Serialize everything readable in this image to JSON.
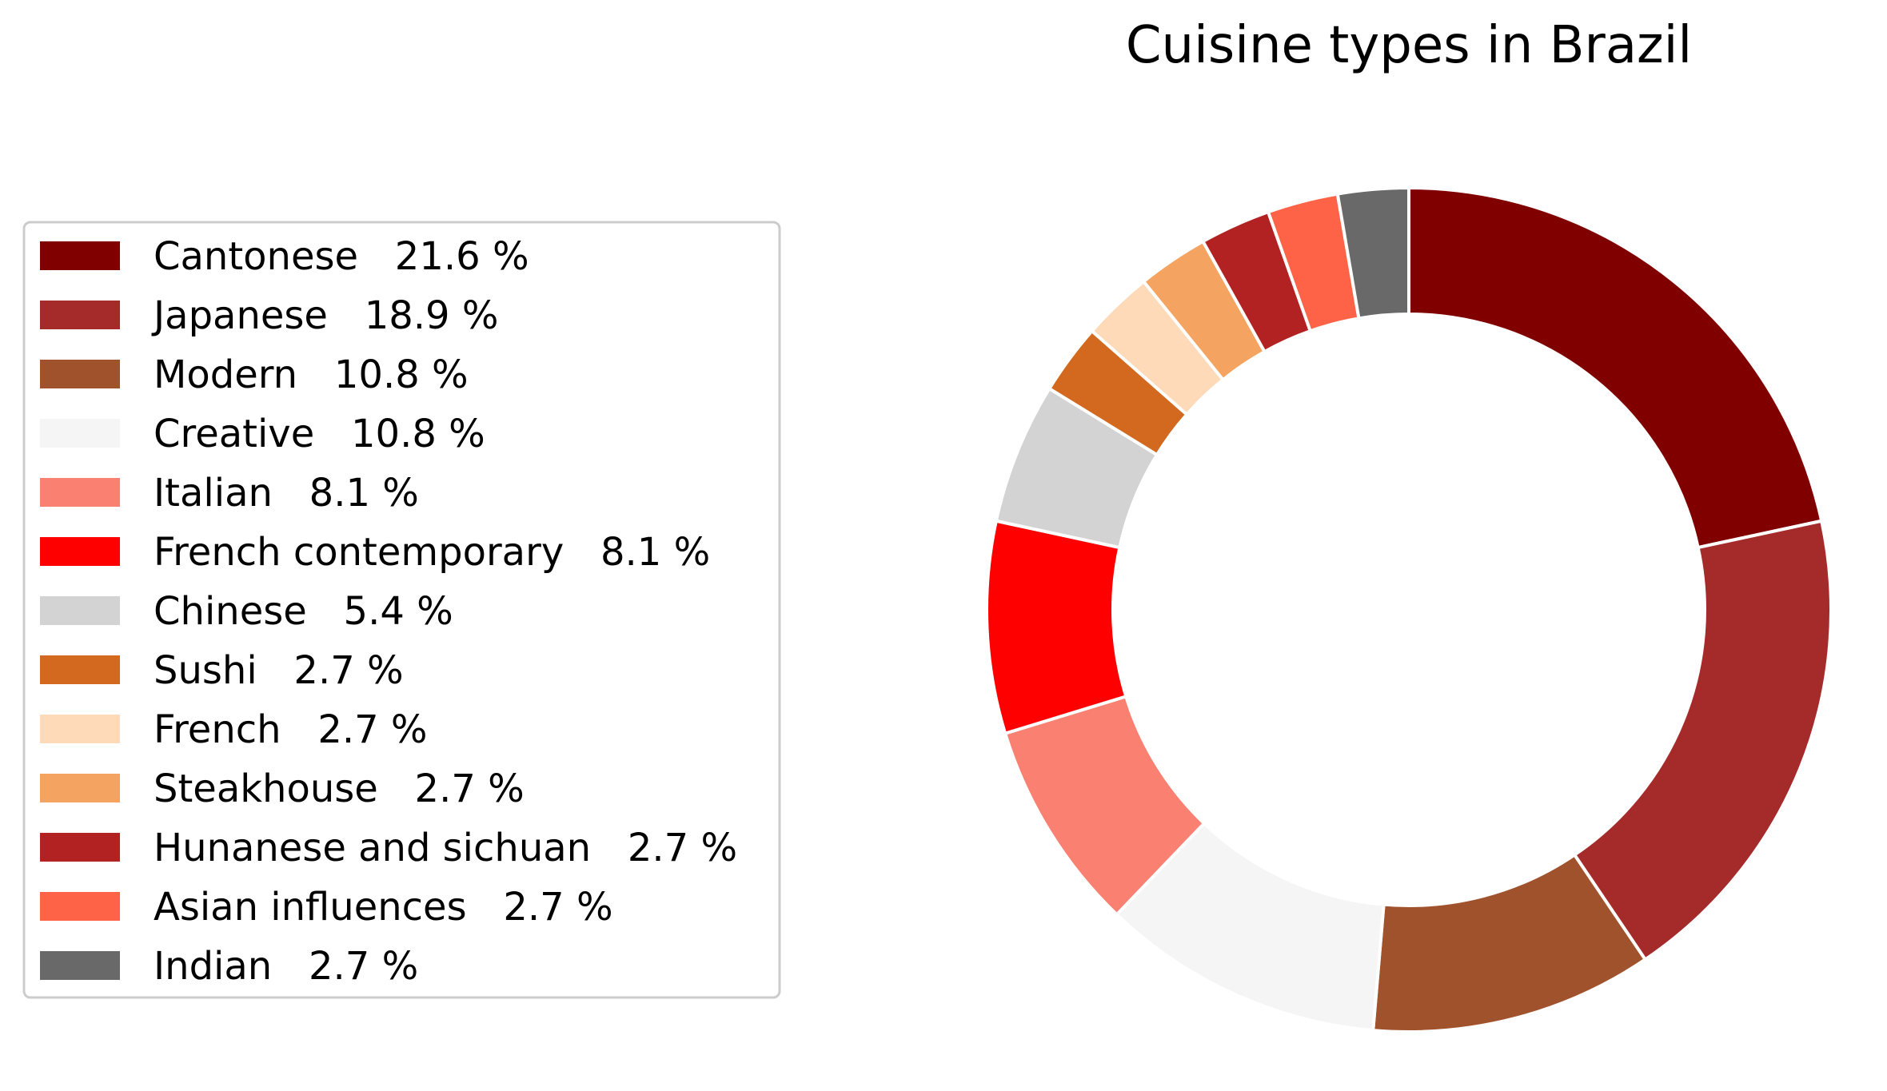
{
  "chart_data": {
    "type": "pie",
    "donut": true,
    "title": "Cuisine types in Brazil",
    "start_angle_deg": 90,
    "direction": "clockwise",
    "legend_position": "left",
    "slices": [
      {
        "label": "Cantonese",
        "percent": 21.6,
        "percent_text": "21.6 %",
        "color": "#800000"
      },
      {
        "label": "Japanese",
        "percent": 18.9,
        "percent_text": "18.9 %",
        "color": "#a52a2a"
      },
      {
        "label": "Modern",
        "percent": 10.8,
        "percent_text": "10.8 %",
        "color": "#a0522d"
      },
      {
        "label": "Creative",
        "percent": 10.8,
        "percent_text": "10.8 %",
        "color": "#f5f5f5"
      },
      {
        "label": "Italian",
        "percent": 8.1,
        "percent_text": "8.1 %",
        "color": "#fa8072"
      },
      {
        "label": "French contemporary",
        "percent": 8.1,
        "percent_text": "8.1 %",
        "color": "#ff0000"
      },
      {
        "label": "Chinese",
        "percent": 5.4,
        "percent_text": "5.4 %",
        "color": "#d3d3d3"
      },
      {
        "label": "Sushi",
        "percent": 2.7,
        "percent_text": "2.7 %",
        "color": "#d2691e"
      },
      {
        "label": "French",
        "percent": 2.7,
        "percent_text": "2.7 %",
        "color": "#ffdab9"
      },
      {
        "label": "Steakhouse",
        "percent": 2.7,
        "percent_text": "2.7 %",
        "color": "#f4a460"
      },
      {
        "label": "Hunanese and sichuan",
        "percent": 2.7,
        "percent_text": "2.7 %",
        "color": "#b22222"
      },
      {
        "label": "Asian influences",
        "percent": 2.7,
        "percent_text": "2.7 %",
        "color": "#ff6347"
      },
      {
        "label": "Indian",
        "percent": 2.7,
        "percent_text": "2.7 %",
        "color": "#696969"
      }
    ]
  }
}
